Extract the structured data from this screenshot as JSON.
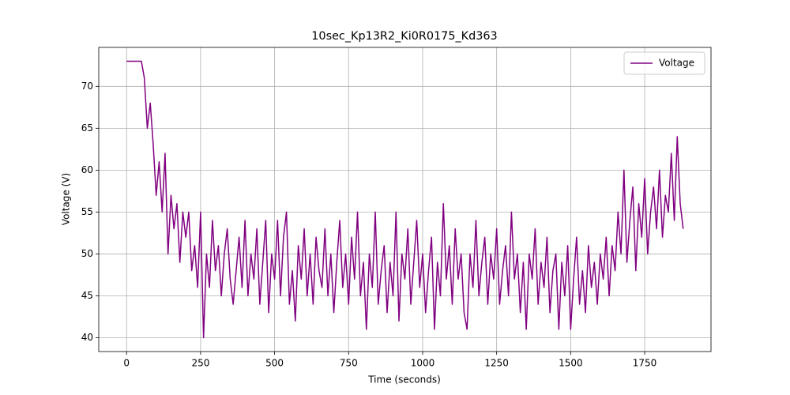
{
  "chart_data": {
    "type": "line",
    "title": "10sec_Kp13R2_Ki0R0175_Kd363",
    "xlabel": "Time (seconds)",
    "ylabel": "Voltage (V)",
    "x": [
      0,
      10,
      20,
      30,
      40,
      50,
      60,
      70,
      80,
      90,
      100,
      110,
      120,
      130,
      140,
      150,
      160,
      170,
      180,
      190,
      200,
      210,
      220,
      230,
      240,
      250,
      260,
      270,
      280,
      290,
      300,
      310,
      320,
      330,
      340,
      350,
      360,
      370,
      380,
      390,
      400,
      410,
      420,
      430,
      440,
      450,
      460,
      470,
      480,
      490,
      500,
      510,
      520,
      530,
      540,
      550,
      560,
      570,
      580,
      590,
      600,
      610,
      620,
      630,
      640,
      650,
      660,
      670,
      680,
      690,
      700,
      710,
      720,
      730,
      740,
      750,
      760,
      770,
      780,
      790,
      800,
      810,
      820,
      830,
      840,
      850,
      860,
      870,
      880,
      890,
      900,
      910,
      920,
      930,
      940,
      950,
      960,
      970,
      980,
      990,
      1000,
      1010,
      1020,
      1030,
      1040,
      1050,
      1060,
      1070,
      1080,
      1090,
      1100,
      1110,
      1120,
      1130,
      1140,
      1150,
      1160,
      1170,
      1180,
      1190,
      1200,
      1210,
      1220,
      1230,
      1240,
      1250,
      1260,
      1270,
      1280,
      1290,
      1300,
      1310,
      1320,
      1330,
      1340,
      1350,
      1360,
      1370,
      1380,
      1390,
      1400,
      1410,
      1420,
      1430,
      1440,
      1450,
      1460,
      1470,
      1480,
      1490,
      1500,
      1510,
      1520,
      1530,
      1540,
      1550,
      1560,
      1570,
      1580,
      1590,
      1600,
      1610,
      1620,
      1630,
      1640,
      1650,
      1660,
      1670,
      1680,
      1690,
      1700,
      1710,
      1720,
      1730,
      1740,
      1750,
      1760,
      1770,
      1780,
      1790,
      1800,
      1810,
      1820,
      1830,
      1840,
      1850,
      1860,
      1870,
      1880
    ],
    "series": [
      {
        "name": "Voltage",
        "color": "#800080",
        "values": [
          73,
          73,
          73,
          73,
          73,
          73,
          71,
          65,
          68,
          63,
          57,
          61,
          55,
          62,
          50,
          57,
          53,
          56,
          49,
          55,
          52,
          55,
          48,
          51,
          46,
          55,
          40,
          50,
          46,
          54,
          48,
          51,
          45,
          50,
          53,
          47,
          44,
          48,
          52,
          46,
          54,
          45,
          50,
          47,
          53,
          44,
          49,
          54,
          43,
          50,
          47,
          54,
          45,
          52,
          55,
          44,
          48,
          42,
          51,
          47,
          53,
          45,
          50,
          44,
          52,
          48,
          46,
          53,
          45,
          50,
          43,
          49,
          54,
          46,
          50,
          44,
          52,
          47,
          55,
          45,
          49,
          41,
          50,
          46,
          55,
          44,
          48,
          51,
          43,
          49,
          45,
          55,
          42,
          50,
          47,
          53,
          44,
          49,
          54,
          46,
          50,
          43,
          48,
          52,
          41,
          49,
          45,
          56,
          47,
          51,
          44,
          53,
          47,
          50,
          43,
          41,
          50,
          46,
          54,
          45,
          49,
          52,
          44,
          50,
          47,
          53,
          44,
          48,
          51,
          45,
          55,
          47,
          50,
          43,
          49,
          41,
          50,
          47,
          53,
          44,
          49,
          46,
          52,
          43,
          48,
          50,
          41,
          49,
          45,
          51,
          41,
          47,
          52,
          44,
          48,
          43,
          51,
          46,
          49,
          44,
          50,
          47,
          52,
          45,
          51,
          48,
          55,
          50,
          60,
          49,
          54,
          58,
          48,
          56,
          52,
          59,
          50,
          55,
          58,
          53,
          60,
          52,
          57,
          55,
          62,
          54,
          64,
          56,
          53
        ]
      }
    ],
    "xlim": [
      -94,
      1974
    ],
    "ylim": [
      38.35,
      74.65
    ],
    "xticks": [
      0,
      250,
      500,
      750,
      1000,
      1250,
      1500,
      1750
    ],
    "yticks": [
      40,
      45,
      50,
      55,
      60,
      65,
      70
    ],
    "grid": true,
    "legend": "upper right"
  }
}
